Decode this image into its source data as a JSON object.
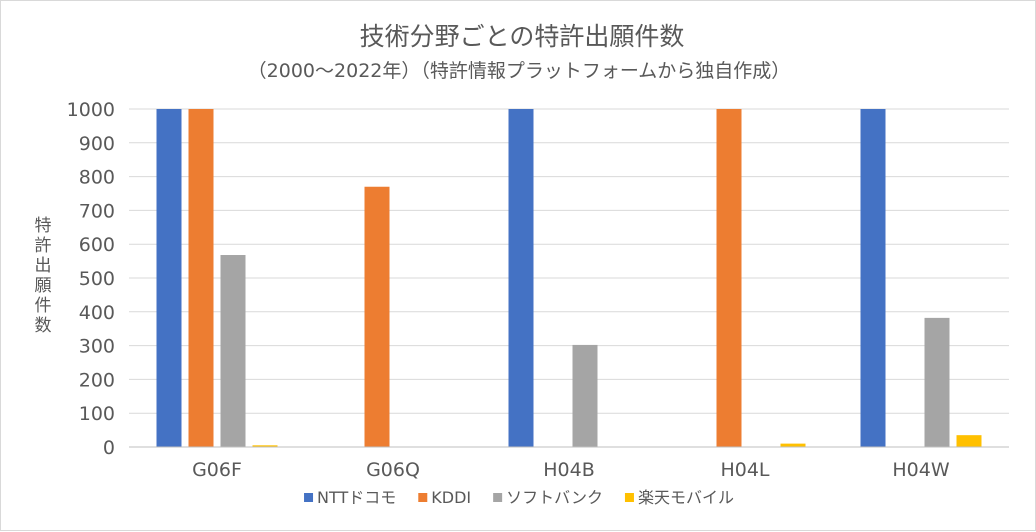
{
  "chart_data": {
    "type": "bar",
    "title": "技術分野ごとの特許出願件数",
    "subtitle": "（2000～2022年）（特許情報プラットフォームから独自作成）",
    "xlabel": "",
    "ylabel": "特許出願件数",
    "ylim": [
      0,
      1000
    ],
    "yticks": [
      "0",
      "100",
      "200",
      "300",
      "400",
      "500",
      "600",
      "700",
      "800",
      "900",
      "1000"
    ],
    "grid": true,
    "legend_position": "bottom",
    "categories": [
      "G06F",
      "G06Q",
      "H04B",
      "H04L",
      "H04W"
    ],
    "series": [
      {
        "name": "NTTドコモ",
        "color": "#4472c4",
        "values": [
          1000,
          0,
          1000,
          0,
          1000
        ]
      },
      {
        "name": "KDDI",
        "color": "#ed7d31",
        "values": [
          1000,
          770,
          0,
          1000,
          0
        ]
      },
      {
        "name": "ソフトバンク",
        "color": "#a5a5a5",
        "values": [
          568,
          0,
          302,
          0,
          382
        ]
      },
      {
        "name": "楽天モバイル",
        "color": "#ffc000",
        "values": [
          5,
          0,
          0,
          10,
          35
        ]
      }
    ]
  }
}
